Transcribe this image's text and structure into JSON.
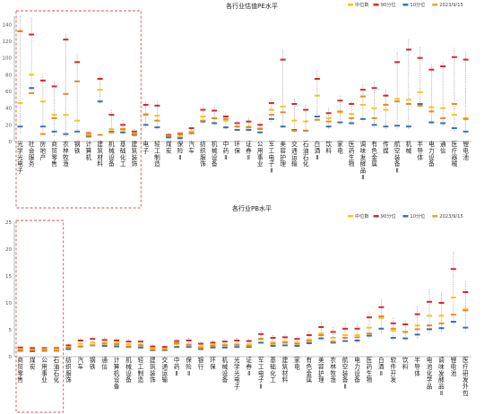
{
  "colors": {
    "median": "#f5c518",
    "p90": "#d9262a",
    "p10": "#3d6fb4",
    "current": "#f0a030",
    "current_line": "#e58a1f",
    "dotted": "#9a9a9a",
    "highlight_box": "#e05050",
    "axis": "#888888",
    "grid": "#e8e8e8",
    "text": "#222222"
  },
  "chart_data": [
    {
      "type": "box",
      "title": "各行业估值PE水平",
      "legend": [
        "中位数",
        "90分位",
        "10分位",
        "2023/9/15"
      ],
      "legend_position": "top-right",
      "ylim": [
        0,
        150
      ],
      "yticks": [
        0,
        20,
        40,
        60,
        80,
        100,
        120,
        140
      ],
      "grid": false,
      "highlighted_categories": [
        "光学光电子",
        "社会服务",
        "房地产",
        "商贸零售",
        "农林牧渔",
        "钢铁",
        "计算机",
        "建筑材料",
        "机械设备",
        "基础化工",
        "建筑装饰"
      ],
      "categories": [
        "光学光电子",
        "社会服务",
        "房地产",
        "商贸零售",
        "农林牧渔",
        "钢铁",
        "计算机",
        "建筑材料",
        "机械设备",
        "基础化工",
        "建筑装饰",
        "电子",
        "轻工制造",
        "煤炭",
        "保险Ⅱ",
        "汽车",
        "纺织服饰",
        "机械设备",
        "中药Ⅱ",
        "环保",
        "证券Ⅱ",
        "公用事业",
        "军工电子Ⅱ",
        "美容护理",
        "交通运输",
        "石油石化",
        "白酒Ⅱ",
        "饮料",
        "家电",
        "医药生物",
        "调味发酵品Ⅱ",
        "有色金属",
        "传媒",
        "航空装备Ⅱ",
        "机械",
        "半导体",
        "电力设备",
        "通信",
        "医疗器械",
        "锂电池"
      ],
      "category_labels": [
        "光学光电子",
        "社会服务",
        "房地产",
        "商贸零售",
        "农林牧渔",
        "钢铁",
        "计算机",
        "建筑材料",
        "机械设备",
        "基础化工",
        "建筑装饰",
        "电子",
        "轻工制造",
        "煤炭",
        "保险Ⅱ",
        "汽车",
        "纺织服饰",
        "机械设备",
        "中药Ⅱ",
        "环保",
        "证券Ⅱ",
        "公用事业",
        "军工电子Ⅱ",
        "美容护理",
        "交通运输",
        "石油石化",
        "白酒Ⅱ",
        "饮料",
        "家电",
        "医药生物",
        "调味发酵品Ⅱ",
        "有色金属",
        "传媒",
        "航空装备Ⅱ",
        "机械",
        "半导体",
        "电力设备",
        "通信",
        "医疗器械",
        "锂电池"
      ],
      "max": [
        150,
        148,
        80,
        72,
        128,
        105,
        12,
        78,
        38,
        26,
        15,
        48,
        48,
        10,
        11,
        20,
        44,
        42,
        34,
        25,
        28,
        24,
        53,
        110,
        51,
        44,
        85,
        40,
        55,
        50,
        68,
        72,
        62,
        107,
        122,
        113,
        92,
        96,
        112,
        108
      ],
      "p90": [
        132,
        128,
        73,
        66,
        122,
        95,
        10,
        75,
        32,
        20,
        12,
        44,
        43,
        8,
        9,
        16,
        38,
        37,
        30,
        22,
        24,
        20,
        46,
        98,
        45,
        38,
        75,
        34,
        49,
        45,
        62,
        64,
        55,
        95,
        110,
        100,
        86,
        90,
        101,
        98
      ],
      "median": [
        46,
        80,
        48,
        32,
        32,
        25,
        9,
        62,
        15,
        14,
        10,
        33,
        31,
        7,
        6,
        12,
        30,
        28,
        25,
        18,
        18,
        16,
        38,
        42,
        25,
        24,
        55,
        28,
        35,
        33,
        44,
        40,
        38,
        51,
        50,
        59,
        41,
        40,
        32,
        28
      ],
      "p10": [
        18,
        64,
        18,
        12,
        9,
        12,
        6,
        48,
        12,
        11,
        8,
        20,
        17,
        5,
        4,
        10,
        24,
        22,
        17,
        14,
        14,
        11,
        27,
        18,
        14,
        13,
        30,
        18,
        23,
        22,
        27,
        20,
        18,
        19,
        18,
        45,
        23,
        22,
        16,
        12
      ],
      "min": [
        10,
        60,
        10,
        6,
        6,
        9,
        4,
        45,
        10,
        9,
        6,
        16,
        14,
        4,
        3,
        8,
        22,
        20,
        14,
        12,
        12,
        9,
        23,
        15,
        11,
        10,
        25,
        15,
        20,
        19,
        22,
        16,
        15,
        15,
        14,
        40,
        20,
        18,
        13,
        9
      ],
      "current": [
        132,
        58,
        9,
        28,
        57,
        72,
        7,
        8,
        11,
        15,
        9,
        32,
        25,
        7,
        10,
        10,
        25,
        28,
        27,
        18,
        17,
        15,
        32,
        35,
        13,
        13,
        26,
        24,
        36,
        28,
        54,
        28,
        44,
        48,
        45,
        43,
        36,
        28,
        45,
        27
      ]
    },
    {
      "type": "box",
      "title": "各行业PB水平",
      "legend": [
        "中位数",
        "90分位",
        "10分位",
        "2023/9/15"
      ],
      "legend_position": "top-right",
      "ylim": [
        0,
        25
      ],
      "yticks": [
        0,
        5,
        10,
        15,
        20,
        25
      ],
      "grid": false,
      "highlighted_categories": [
        "商贸零售",
        "煤炭",
        "公用事业",
        "石油石化"
      ],
      "categories": [
        "商贸零售",
        "煤炭",
        "公用事业",
        "石油石化",
        "纺织服饰",
        "汽车",
        "钢铁",
        "通信",
        "计算机设备",
        "机械设备",
        "轻工制造",
        "建筑装饰",
        "交通运输",
        "中药Ⅱ",
        "保险Ⅱ",
        "银行",
        "环保",
        "机械设备",
        "光学光电子",
        "证券Ⅱ",
        "军工电子Ⅱ",
        "基础化工",
        "建筑材料",
        "家电",
        "有色金属",
        "美容护理",
        "农林牧渔",
        "航空装备Ⅱ",
        "电力设备",
        "医药生物",
        "白酒Ⅱ",
        "软件开发",
        "饮料",
        "半导体",
        "电池化学品",
        "调味发酵品Ⅱ",
        "锂电池",
        "医疗研发外包"
      ],
      "category_labels": [
        "商贸零售",
        "煤炭",
        "公用事业",
        "石油石化",
        "纺织服饰",
        "汽车",
        "钢铁",
        "通信",
        "计算机设备",
        "机械设备",
        "轻工制造",
        "建筑装饰",
        "交通运输",
        "中药Ⅱ",
        "保险Ⅱ",
        "银行",
        "环保",
        "机械设备",
        "光学光电子",
        "证券Ⅱ",
        "军工电子Ⅱ",
        "基础化工",
        "建筑材料",
        "家电",
        "有色金属",
        "美容护理",
        "农林牧渔",
        "航空装备Ⅱ",
        "电力设备",
        "医药生物",
        "白酒Ⅱ",
        "软件开发",
        "饮料",
        "半导体",
        "电池化学品",
        "调味发酵品Ⅱ",
        "锂电池",
        "医疗研发外包"
      ],
      "max": [
        1.9,
        1.8,
        1.8,
        1.8,
        2.4,
        3.4,
        3.8,
        3.6,
        3.4,
        3.2,
        3.3,
        2.2,
        2.0,
        3.3,
        3.5,
        2.8,
        3.0,
        3.3,
        3.5,
        3.3,
        4.8,
        4.0,
        4.2,
        3.8,
        4.7,
        6.6,
        5.5,
        6.2,
        6.1,
        8.4,
        10.7,
        7.2,
        6.8,
        9.3,
        12.5,
        12.0,
        19.5,
        14.0
      ],
      "p90": [
        1.7,
        1.6,
        1.6,
        1.6,
        2.1,
        3.0,
        3.3,
        3.1,
        3.0,
        2.8,
        2.8,
        1.9,
        1.8,
        2.9,
        3.0,
        2.4,
        2.6,
        2.8,
        3.0,
        2.9,
        4.2,
        3.5,
        3.6,
        3.3,
        4.0,
        5.5,
        4.6,
        5.2,
        5.2,
        7.3,
        9.2,
        6.2,
        6.0,
        7.9,
        10.2,
        10.0,
        16.3,
        12.0
      ],
      "median": [
        1.4,
        1.3,
        1.4,
        1.4,
        1.8,
        2.4,
        2.6,
        2.6,
        2.5,
        2.3,
        2.2,
        1.6,
        1.5,
        2.3,
        2.3,
        1.9,
        2.2,
        2.2,
        2.3,
        2.3,
        3.3,
        2.7,
        2.8,
        2.6,
        3.2,
        4.3,
        3.5,
        4.0,
        4.0,
        5.4,
        7.2,
        4.8,
        4.6,
        5.8,
        7.6,
        7.6,
        11.0,
        8.8
      ],
      "p10": [
        1.1,
        1.0,
        1.1,
        1.1,
        1.4,
        1.9,
        2.1,
        2.0,
        1.9,
        1.8,
        1.7,
        1.2,
        1.2,
        1.8,
        1.8,
        1.4,
        1.7,
        1.7,
        1.8,
        1.8,
        2.6,
        2.0,
        2.1,
        2.0,
        2.5,
        3.4,
        2.6,
        2.9,
        3.0,
        3.9,
        5.2,
        3.5,
        3.4,
        4.1,
        5.1,
        5.3,
        6.5,
        5.4
      ],
      "min": [
        1.0,
        0.9,
        1.0,
        1.0,
        1.2,
        1.6,
        1.9,
        1.8,
        1.7,
        1.6,
        1.5,
        1.1,
        1.0,
        1.6,
        1.6,
        1.2,
        1.5,
        1.5,
        1.6,
        1.6,
        2.3,
        1.7,
        1.8,
        1.8,
        2.2,
        3.0,
        2.3,
        2.6,
        2.7,
        3.4,
        4.5,
        3.0,
        3.0,
        3.5,
        4.3,
        4.5,
        5.5,
        4.6
      ],
      "current": [
        1.2,
        1.2,
        1.2,
        1.1,
        1.7,
        1.9,
        2.1,
        2.4,
        2.3,
        1.9,
        2.1,
        1.3,
        1.3,
        2.5,
        2.2,
        1.6,
        2.0,
        2.1,
        2.2,
        2.0,
        3.3,
        2.4,
        2.6,
        2.4,
        2.9,
        4.0,
        2.8,
        3.5,
        3.6,
        4.3,
        7.5,
        5.2,
        4.6,
        5.1,
        5.8,
        6.2,
        7.8,
        8.6
      ]
    }
  ]
}
